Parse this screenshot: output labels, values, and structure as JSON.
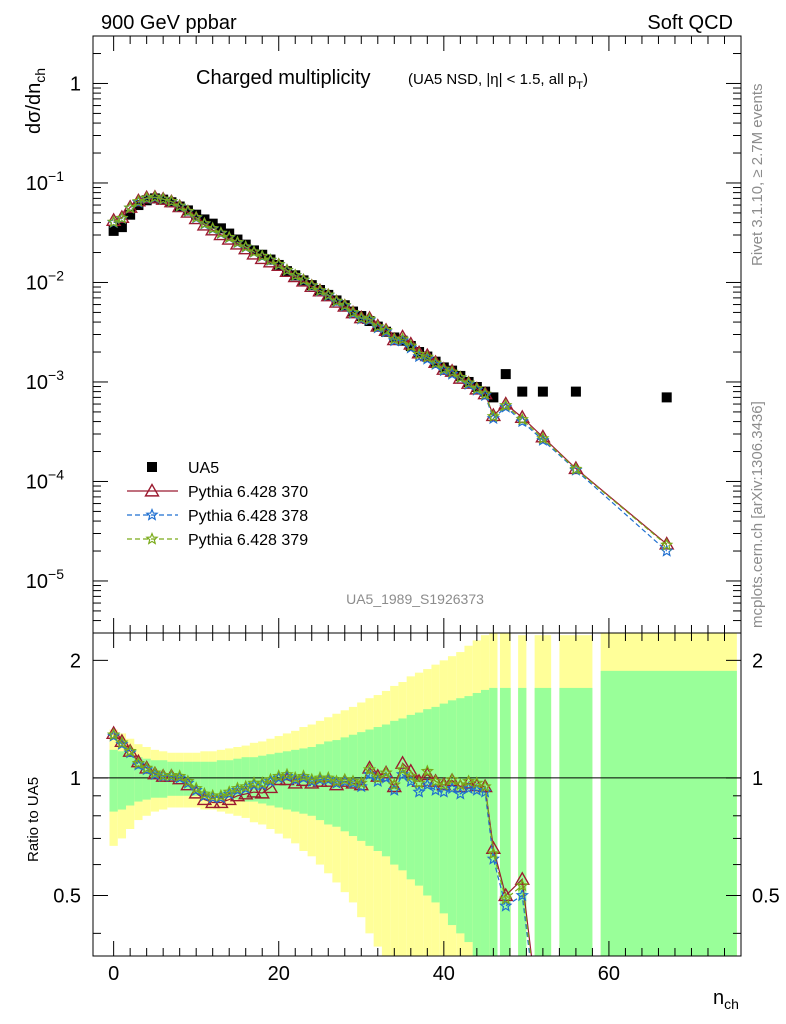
{
  "header": {
    "energy_label": "900 GeV ppbar",
    "process_label": "Soft QCD"
  },
  "side_labels": {
    "rivet": "Rivet 3.1.10, ≥ 2.7M events",
    "mcplots": "mcplots.cern.ch [arXiv:1306.3436]"
  },
  "chart_data": [
    {
      "type": "scatter",
      "title": "Charged multiplicity",
      "subtitle": "(UA5 NSD, |η| < 1.5, all p",
      "subtitle_sub": "T",
      "subtitle_end": ")",
      "ylabel": "dσ/dn",
      "ylabel_sub": "ch",
      "analysis_id": "UA5_1989_S1926373",
      "xlim": [
        -2.5,
        76
      ],
      "ylim": [
        3e-06,
        3.0
      ],
      "yscale": "log",
      "grid": false,
      "legend_position": "lower-left",
      "y_tick_labels": [
        {
          "v": 1,
          "base": "1",
          "exp": ""
        },
        {
          "v": 0.1,
          "base": "10",
          "exp": "−1"
        },
        {
          "v": 0.01,
          "base": "10",
          "exp": "−2"
        },
        {
          "v": 0.001,
          "base": "10",
          "exp": "−3"
        },
        {
          "v": 0.0001,
          "base": "10",
          "exp": "−4"
        },
        {
          "v": 1e-05,
          "base": "10",
          "exp": "−5"
        }
      ],
      "series": [
        {
          "name": "UA5",
          "marker": "square",
          "color": "#000000",
          "x": [
            0,
            1,
            2,
            3,
            4,
            5,
            6,
            7,
            8,
            9,
            10,
            11,
            12,
            13,
            14,
            15,
            16,
            17,
            18,
            19,
            20,
            21,
            22,
            23,
            24,
            25,
            26,
            27,
            28,
            29,
            30,
            31,
            32,
            33,
            34,
            35,
            36,
            37,
            38,
            39,
            40,
            41,
            42,
            43,
            44,
            45,
            46,
            47.5,
            49.5,
            52,
            56,
            67
          ],
          "y": [
            0.033,
            0.036,
            0.048,
            0.06,
            0.067,
            0.07,
            0.068,
            0.064,
            0.058,
            0.053,
            0.048,
            0.043,
            0.039,
            0.035,
            0.031,
            0.027,
            0.024,
            0.021,
            0.019,
            0.017,
            0.015,
            0.013,
            0.0118,
            0.0105,
            0.0094,
            0.0084,
            0.0075,
            0.0066,
            0.0059,
            0.0051,
            0.0046,
            0.0041,
            0.0036,
            0.0032,
            0.0028,
            0.0026,
            0.0023,
            0.002,
            0.0018,
            0.0016,
            0.0014,
            0.0013,
            0.00115,
            0.001,
            0.00089,
            0.0008,
            0.0007,
            0.0012,
            0.0008,
            0.0008,
            0.0008,
            0.0007
          ]
        },
        {
          "name": "Pythia 6.428 370",
          "marker": "triangle-open",
          "color": "#9b1b30",
          "line": "solid",
          "x": [
            0,
            1,
            2,
            3,
            4,
            5,
            6,
            7,
            8,
            9,
            10,
            11,
            12,
            13,
            14,
            15,
            16,
            17,
            18,
            19,
            20,
            21,
            22,
            23,
            24,
            25,
            26,
            27,
            28,
            29,
            30,
            31,
            32,
            33,
            34,
            35,
            36,
            37,
            38,
            39,
            40,
            41,
            42,
            43,
            44,
            45,
            46,
            47.5,
            49.5,
            52,
            56,
            67
          ],
          "y": [
            0.042,
            0.045,
            0.057,
            0.066,
            0.071,
            0.0718,
            0.0686,
            0.0646,
            0.0578,
            0.0509,
            0.0438,
            0.0378,
            0.0337,
            0.0302,
            0.0272,
            0.0243,
            0.0218,
            0.0193,
            0.0174,
            0.0161,
            0.01485,
            0.0129,
            0.01145,
            0.01032,
            0.00912,
            0.00823,
            0.00735,
            0.00634,
            0.00578,
            0.00495,
            0.00442,
            0.00435,
            0.00364,
            0.0033,
            0.00266,
            0.00283,
            0.0024,
            0.00196,
            0.00184,
            0.00157,
            0.00134,
            0.00128,
            0.00109,
            0.00097,
            0.00085,
            0.00076,
            0.00046,
            0.0006,
            0.00044,
            0.00028,
            0.000135,
            2.35e-05
          ]
        },
        {
          "name": "Pythia 6.428 378",
          "marker": "star",
          "color": "#1f6fd0",
          "line": "dashed",
          "x": [
            0,
            1,
            2,
            3,
            4,
            5,
            6,
            7,
            8,
            9,
            10,
            11,
            12,
            13,
            14,
            15,
            16,
            17,
            18,
            19,
            20,
            21,
            22,
            23,
            24,
            25,
            26,
            27,
            28,
            29,
            30,
            31,
            32,
            33,
            34,
            35,
            36,
            37,
            38,
            39,
            40,
            41,
            42,
            43,
            44,
            45,
            46,
            47.5,
            49.5,
            52,
            56,
            67
          ],
          "y": [
            0.04,
            0.044,
            0.056,
            0.064,
            0.0697,
            0.0713,
            0.0685,
            0.0649,
            0.0581,
            0.0515,
            0.0446,
            0.0387,
            0.0346,
            0.0311,
            0.0282,
            0.0251,
            0.0226,
            0.0202,
            0.0183,
            0.0167,
            0.0151,
            0.0132,
            0.0117,
            0.0105,
            0.0092,
            0.0082,
            0.0074,
            0.0064,
            0.0058,
            0.0049,
            0.0043,
            0.0042,
            0.0035,
            0.0032,
            0.0026,
            0.0026,
            0.0022,
            0.0018,
            0.0017,
            0.0015,
            0.0013,
            0.0012,
            0.0011,
            0.00095,
            0.00083,
            0.00073,
            0.00043,
            0.00056,
            0.0004,
            0.00026,
            0.00013,
            2e-05
          ]
        },
        {
          "name": "Pythia 6.428 379",
          "marker": "star",
          "color": "#7aab1a",
          "line": "dashed",
          "x": [
            0,
            1,
            2,
            3,
            4,
            5,
            6,
            7,
            8,
            9,
            10,
            11,
            12,
            13,
            14,
            15,
            16,
            17,
            18,
            19,
            20,
            21,
            22,
            23,
            24,
            25,
            26,
            27,
            28,
            29,
            30,
            31,
            32,
            33,
            34,
            35,
            36,
            37,
            38,
            39,
            40,
            41,
            42,
            43,
            44,
            45,
            46,
            47.5,
            49.5,
            52,
            56,
            67
          ],
          "y": [
            0.0405,
            0.0443,
            0.0562,
            0.0652,
            0.0705,
            0.0721,
            0.069,
            0.0653,
            0.0587,
            0.052,
            0.045,
            0.0391,
            0.0349,
            0.0314,
            0.0284,
            0.0253,
            0.0228,
            0.0203,
            0.0184,
            0.0168,
            0.0152,
            0.0133,
            0.0118,
            0.0106,
            0.0093,
            0.0083,
            0.0075,
            0.0065,
            0.0059,
            0.005,
            0.0044,
            0.0043,
            0.0036,
            0.0033,
            0.0027,
            0.0027,
            0.0023,
            0.0019,
            0.00178,
            0.00155,
            0.00135,
            0.00126,
            0.00111,
            0.00098,
            0.00086,
            0.00076,
            0.00045,
            0.00058,
            0.00042,
            0.00027,
            0.000133,
            2.3e-05
          ]
        }
      ]
    },
    {
      "type": "line",
      "ylabel": "Ratio to UA5",
      "xlabel": "n",
      "xlabel_sub": "ch",
      "xlim": [
        -2.5,
        76
      ],
      "ylim": [
        0.35,
        2.35
      ],
      "yscale": "log",
      "x_tick_labels": [
        "0",
        "20",
        "40",
        "60"
      ],
      "y_tick_labels": [
        "0.5",
        "1",
        "2"
      ],
      "reference_line": 1,
      "uncertainty_bands": {
        "x_lo": [
          -0.5,
          0.5,
          1.5,
          2.5,
          3.5,
          4.5,
          5.5,
          6.5,
          7.5,
          8.5,
          9.5,
          10.5,
          11.5,
          12.5,
          13.5,
          14.5,
          15.5,
          16.5,
          17.5,
          18.5,
          19.5,
          20.5,
          21.5,
          22.5,
          23.5,
          24.5,
          25.5,
          26.5,
          27.5,
          28.5,
          29.5,
          30.5,
          31.5,
          32.5,
          33.5,
          34.5,
          35.5,
          36.5,
          37.5,
          38.5,
          39.5,
          40.5,
          41.5,
          42.5,
          43.5,
          44.5,
          45.5,
          46.8,
          49.0,
          51.0,
          54.0,
          59.0
        ],
        "x_hi": [
          0.5,
          1.5,
          2.5,
          3.5,
          4.5,
          5.5,
          6.5,
          7.5,
          8.5,
          9.5,
          10.5,
          11.5,
          12.5,
          13.5,
          14.5,
          15.5,
          16.5,
          17.5,
          18.5,
          19.5,
          20.5,
          21.5,
          22.5,
          23.5,
          24.5,
          25.5,
          26.5,
          27.5,
          28.5,
          29.5,
          30.5,
          31.5,
          32.5,
          33.5,
          34.5,
          35.5,
          36.5,
          37.5,
          38.5,
          39.5,
          40.5,
          41.5,
          42.5,
          43.5,
          44.5,
          45.5,
          46.5,
          48.1,
          50.0,
          53.0,
          58.0,
          75.5
        ],
        "green": [
          0.18,
          0.17,
          0.15,
          0.13,
          0.12,
          0.11,
          0.11,
          0.1,
          0.1,
          0.1,
          0.1,
          0.1,
          0.1,
          0.11,
          0.11,
          0.12,
          0.13,
          0.13,
          0.14,
          0.15,
          0.16,
          0.17,
          0.18,
          0.19,
          0.2,
          0.22,
          0.24,
          0.25,
          0.27,
          0.29,
          0.31,
          0.33,
          0.35,
          0.37,
          0.4,
          0.42,
          0.45,
          0.47,
          0.5,
          0.52,
          0.55,
          0.58,
          0.6,
          0.62,
          0.65,
          0.68,
          0.7,
          0.7,
          0.7,
          0.7,
          0.7,
          0.88
        ],
        "yellow": [
          0.33,
          0.3,
          0.26,
          0.22,
          0.2,
          0.18,
          0.17,
          0.16,
          0.16,
          0.16,
          0.16,
          0.17,
          0.17,
          0.18,
          0.19,
          0.2,
          0.21,
          0.23,
          0.24,
          0.26,
          0.28,
          0.3,
          0.32,
          0.35,
          0.37,
          0.4,
          0.43,
          0.46,
          0.49,
          0.52,
          0.56,
          0.6,
          0.63,
          0.67,
          0.72,
          0.76,
          0.82,
          0.86,
          0.9,
          0.95,
          1.0,
          1.05,
          1.1,
          1.18,
          1.25,
          1.32,
          1.45,
          1.4,
          1.32,
          1.32,
          1.32,
          1.4
        ]
      },
      "colors": {
        "green_band": "#99ff99",
        "yellow_band": "#ffff99"
      },
      "series": [
        {
          "name": "Pythia 6.428 370",
          "marker": "triangle-open",
          "color": "#9b1b30",
          "line": "solid",
          "x": [
            0,
            1,
            2,
            3,
            4,
            5,
            6,
            7,
            8,
            9,
            10,
            11,
            12,
            13,
            14,
            15,
            16,
            17,
            18,
            19,
            20,
            21,
            22,
            23,
            24,
            25,
            26,
            27,
            28,
            29,
            30,
            31,
            32,
            33,
            34,
            35,
            36,
            37,
            38,
            39,
            40,
            41,
            42,
            43,
            44,
            45,
            46,
            47.5,
            49.5,
            51.0
          ],
          "y": [
            1.3,
            1.24,
            1.17,
            1.1,
            1.06,
            1.025,
            1.01,
            1.01,
            0.995,
            0.96,
            0.915,
            0.88,
            0.865,
            0.865,
            0.88,
            0.9,
            0.91,
            0.92,
            0.915,
            0.945,
            0.99,
            0.99,
            0.97,
            0.985,
            0.97,
            0.98,
            0.98,
            0.96,
            0.98,
            0.97,
            0.96,
            1.06,
            1.01,
            1.03,
            0.95,
            1.09,
            1.04,
            0.98,
            1.02,
            0.98,
            0.96,
            0.985,
            0.95,
            0.97,
            0.955,
            0.95,
            0.66,
            0.5,
            0.55,
            0.3
          ]
        },
        {
          "name": "Pythia 6.428 378",
          "marker": "star",
          "color": "#1f6fd0",
          "line": "dashed",
          "x": [
            0,
            1,
            2,
            3,
            4,
            5,
            6,
            7,
            8,
            9,
            10,
            11,
            12,
            13,
            14,
            15,
            16,
            17,
            18,
            19,
            20,
            21,
            22,
            23,
            24,
            25,
            26,
            27,
            28,
            29,
            30,
            31,
            32,
            33,
            34,
            35,
            36,
            37,
            38,
            39,
            40,
            41,
            42,
            43,
            44,
            45,
            46,
            47.5,
            49.5,
            51.0
          ],
          "y": [
            1.28,
            1.22,
            1.16,
            1.08,
            1.05,
            1.02,
            1.01,
            1.01,
            1.0,
            0.97,
            0.93,
            0.9,
            0.89,
            0.89,
            0.91,
            0.93,
            0.94,
            0.96,
            0.96,
            0.98,
            1.0,
            1.01,
            0.99,
            1.0,
            0.98,
            0.99,
            0.99,
            0.97,
            0.98,
            0.97,
            0.95,
            1.02,
            0.98,
            1.0,
            0.93,
            1.02,
            0.98,
            0.92,
            0.96,
            0.93,
            0.92,
            0.94,
            0.91,
            0.94,
            0.93,
            0.92,
            0.62,
            0.47,
            0.5,
            0.28
          ]
        },
        {
          "name": "Pythia 6.428 379",
          "marker": "star",
          "color": "#7aab1a",
          "line": "dashed",
          "x": [
            0,
            1,
            2,
            3,
            4,
            5,
            6,
            7,
            8,
            9,
            10,
            11,
            12,
            13,
            14,
            15,
            16,
            17,
            18,
            19,
            20,
            21,
            22,
            23,
            24,
            25,
            26,
            27,
            28,
            29,
            30,
            31,
            32,
            33,
            34,
            35,
            36,
            37,
            38,
            39,
            40,
            41,
            42,
            43,
            44,
            45,
            46,
            47.5,
            49.5,
            51.0
          ],
          "y": [
            1.29,
            1.23,
            1.17,
            1.09,
            1.06,
            1.03,
            1.015,
            1.015,
            1.01,
            0.98,
            0.94,
            0.91,
            0.9,
            0.9,
            0.92,
            0.94,
            0.95,
            0.97,
            0.97,
            0.99,
            1.01,
            1.02,
            1.0,
            1.01,
            0.99,
            1.0,
            1.0,
            0.98,
            0.99,
            0.98,
            0.97,
            1.05,
            1.0,
            1.03,
            0.96,
            1.05,
            1.01,
            0.97,
            1.04,
            0.98,
            0.96,
            0.99,
            0.96,
            0.98,
            0.97,
            0.95,
            0.64,
            0.49,
            0.53,
            0.29
          ]
        }
      ]
    }
  ]
}
